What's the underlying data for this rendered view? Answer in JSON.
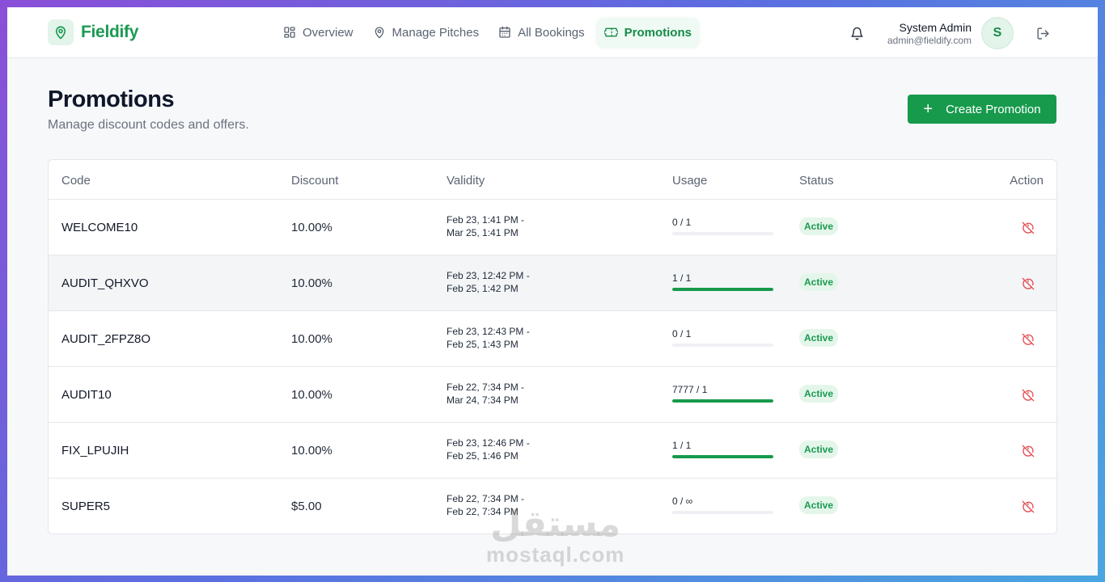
{
  "brand": {
    "name": "Fieldify"
  },
  "nav": [
    {
      "label": "Overview",
      "icon": "grid-icon",
      "active": false
    },
    {
      "label": "Manage Pitches",
      "icon": "map-pin-icon",
      "active": false
    },
    {
      "label": "All Bookings",
      "icon": "calendar-icon",
      "active": false
    },
    {
      "label": "Promotions",
      "icon": "ticket-icon",
      "active": true
    }
  ],
  "user": {
    "name": "System Admin",
    "email": "admin@fieldify.com",
    "initial": "S"
  },
  "page": {
    "title": "Promotions",
    "subtitle": "Manage discount codes and offers.",
    "create_label": "Create Promotion"
  },
  "table": {
    "headers": {
      "code": "Code",
      "discount": "Discount",
      "validity": "Validity",
      "usage": "Usage",
      "status": "Status",
      "action": "Action"
    },
    "rows": [
      {
        "code": "WELCOME10",
        "discount": "10.00%",
        "valid_from": "Feb 23, 1:41 PM -",
        "valid_to": "Mar 25, 1:41 PM",
        "usage": "0 / 1",
        "usage_fraction": 0,
        "status": "Active"
      },
      {
        "code": "AUDIT_QHXVO",
        "discount": "10.00%",
        "valid_from": "Feb 23, 12:42 PM -",
        "valid_to": "Feb 25, 1:42 PM",
        "usage": "1 / 1",
        "usage_fraction": 1,
        "status": "Active"
      },
      {
        "code": "AUDIT_2FPZ8O",
        "discount": "10.00%",
        "valid_from": "Feb 23, 12:43 PM -",
        "valid_to": "Feb 25, 1:43 PM",
        "usage": "0 / 1",
        "usage_fraction": 0,
        "status": "Active"
      },
      {
        "code": "AUDIT10",
        "discount": "10.00%",
        "valid_from": "Feb 22, 7:34 PM -",
        "valid_to": "Mar 24, 7:34 PM",
        "usage": "7777 / 1",
        "usage_fraction": 1,
        "status": "Active"
      },
      {
        "code": "FIX_LPUJIH",
        "discount": "10.00%",
        "valid_from": "Feb 23, 12:46 PM -",
        "valid_to": "Feb 25, 1:46 PM",
        "usage": "1 / 1",
        "usage_fraction": 1,
        "status": "Active"
      },
      {
        "code": "SUPER5",
        "discount": "$5.00",
        "valid_from": "Feb 22, 7:34 PM -",
        "valid_to": "Feb 22, 7:34 PM",
        "usage": "0 / ∞",
        "usage_fraction": 0,
        "status": "Active"
      }
    ]
  },
  "watermark": {
    "arabic": "مستقل",
    "latin": "mostaql.com"
  },
  "colors": {
    "accent": "#179a4c",
    "danger": "#e5484d",
    "badge_bg": "#e4f6ea"
  }
}
